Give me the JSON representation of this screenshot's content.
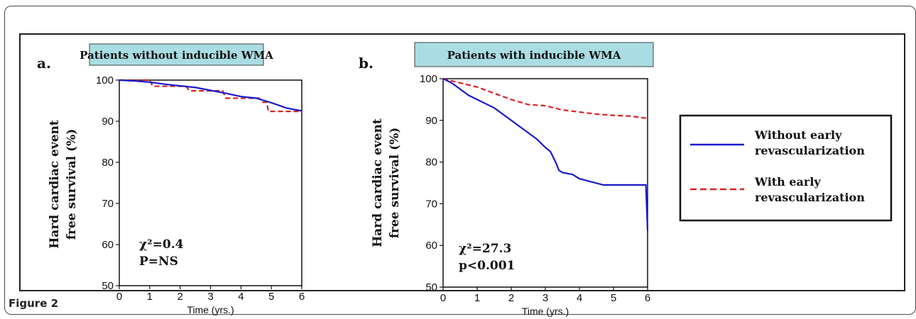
{
  "figure_caption": "Figure 2",
  "legend": {
    "items": [
      {
        "label_lines": [
          "Without early",
          "revascularization"
        ],
        "color": "#1a1acc",
        "style": "solid"
      },
      {
        "label_lines": [
          "With early",
          "revascularization"
        ],
        "color": "#dd2222",
        "style": "dashed"
      }
    ]
  },
  "chart_data": [
    {
      "type": "line",
      "panel_label": "a.",
      "title": "Patients without inducible WMA",
      "xlabel": "Time (yrs.)",
      "ylabel_lines": [
        "Hard cardiac event",
        "free survival (%)"
      ],
      "xlim": [
        0,
        6
      ],
      "ylim": [
        50,
        100
      ],
      "xticks": [
        "0",
        "1",
        "2",
        "3",
        "4",
        "5",
        "6"
      ],
      "yticks": [
        "50",
        "60",
        "70",
        "80",
        "90",
        "100"
      ],
      "stat_lines": [
        "χ²=0.4",
        "P=NS"
      ],
      "series": [
        {
          "name": "Without early revascularization",
          "color": "#1a1acc",
          "style": "solid",
          "x": [
            0,
            0.5,
            1,
            1.5,
            2,
            2.5,
            3,
            3.5,
            4,
            4.5,
            5,
            5.5,
            6
          ],
          "y": [
            100,
            99.8,
            99.5,
            99,
            98.6,
            98.2,
            97.5,
            96.8,
            96,
            95.6,
            94.5,
            93.2,
            92.5
          ]
        },
        {
          "name": "With early revascularization",
          "color": "#dd2222",
          "style": "dashed",
          "x": [
            0,
            1,
            1.1,
            2.2,
            2.3,
            3.4,
            3.5,
            4.6,
            4.7,
            4.85,
            4.9,
            6
          ],
          "y": [
            100,
            100,
            98.5,
            98.5,
            97.4,
            97.4,
            95.6,
            95.6,
            94.6,
            94.6,
            92.4,
            92.4
          ]
        }
      ]
    },
    {
      "type": "line",
      "panel_label": "b.",
      "title": "Patients with inducible WMA",
      "xlabel": "Time (yrs.)",
      "ylabel_lines": [
        "Hard cardiac event",
        "free survival (%)"
      ],
      "xlim": [
        0,
        6
      ],
      "ylim": [
        50,
        100
      ],
      "xticks": [
        "0",
        "1",
        "2",
        "3",
        "4",
        "5",
        "6"
      ],
      "yticks": [
        "50",
        "60",
        "70",
        "80",
        "90",
        "100"
      ],
      "stat_lines": [
        "χ²=27.3",
        "p<0.001"
      ],
      "series": [
        {
          "name": "Without early revascularization",
          "color": "#1a1acc",
          "style": "solid",
          "x": [
            0,
            0.25,
            0.5,
            0.75,
            1,
            1.25,
            1.5,
            1.75,
            2,
            2.25,
            2.5,
            2.75,
            3,
            3.15,
            3.3,
            3.4,
            3.5,
            3.8,
            4,
            4.7,
            5.95,
            6
          ],
          "y": [
            100,
            99,
            97.5,
            96,
            95,
            94,
            93,
            91.5,
            90,
            88.5,
            87,
            85.5,
            83.5,
            82.5,
            80,
            78,
            77.5,
            77,
            76,
            74.5,
            74.5,
            63.5
          ]
        },
        {
          "name": "With early revascularization",
          "color": "#dd2222",
          "style": "dashed",
          "x": [
            0,
            0.5,
            1,
            1.5,
            2,
            2.5,
            3,
            3.5,
            4,
            4.5,
            5,
            5.5,
            6
          ],
          "y": [
            100,
            99,
            98,
            96.5,
            95,
            93.8,
            93.5,
            92.5,
            92,
            91.5,
            91.2,
            91,
            90.5
          ]
        }
      ]
    }
  ]
}
